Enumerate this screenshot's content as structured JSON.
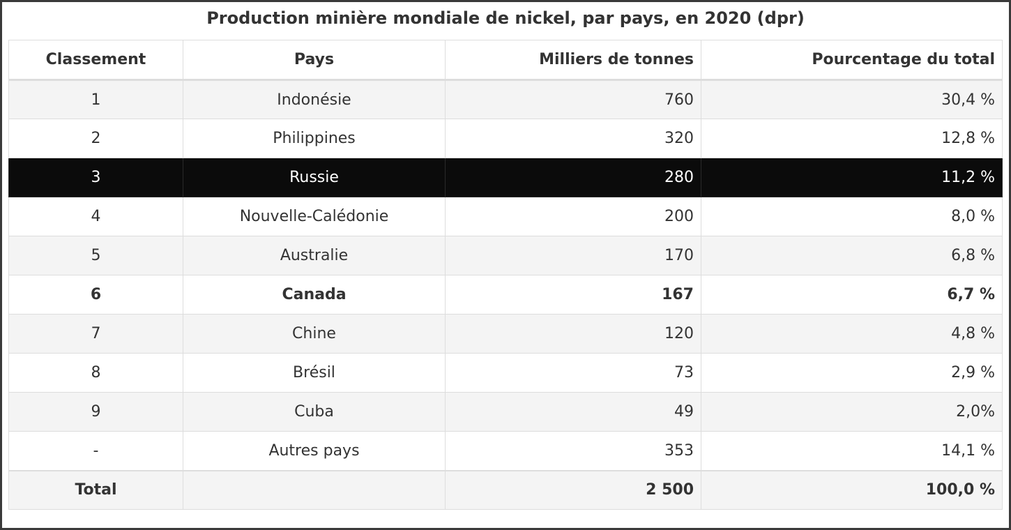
{
  "title": "Production minière mondiale de nickel, par pays, en 2020 (dpr)",
  "table": {
    "headers": [
      "Classement",
      "Pays",
      "Milliers de tonnes",
      "Pourcentage du total"
    ],
    "rows": [
      [
        "1",
        "Indonésie",
        "760",
        "30,4 %"
      ],
      [
        "2",
        "Philippines",
        "320",
        "12,8 %"
      ],
      [
        "3",
        "Russie",
        "280",
        "11,2 %"
      ],
      [
        "4",
        "Nouvelle-Calédonie",
        "200",
        "8,0 %"
      ],
      [
        "5",
        "Australie",
        "170",
        "6,8 %"
      ],
      [
        "6",
        "Canada",
        "167",
        "6,7 %"
      ],
      [
        "7",
        "Chine",
        "120",
        "4,8 %"
      ],
      [
        "8",
        "Brésil",
        "73",
        "2,9 %"
      ],
      [
        "9",
        "Cuba",
        "49",
        "2,0%"
      ],
      [
        "-",
        "Autres pays",
        "353",
        "14,1 %"
      ]
    ],
    "total": [
      "Total",
      "",
      "2 500",
      "100,0 %"
    ]
  },
  "colors": {
    "highlight_row_background": "#0b0b0b",
    "highlight_row_text": "#ffffff",
    "shaded_row_background": "#f4f4f4",
    "border": "#dddddd",
    "text": "#333333"
  }
}
